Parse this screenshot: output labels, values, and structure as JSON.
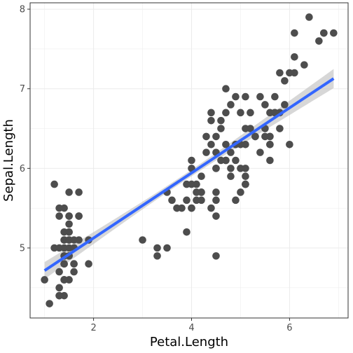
{
  "chart_data": {
    "type": "scatter",
    "title": "",
    "xlabel": "Petal.Length",
    "ylabel": "Sepal.Length",
    "xlim": [
      0.705,
      7.195
    ],
    "ylim": [
      4.12,
      8.08
    ],
    "x_ticks": [
      2,
      4,
      6
    ],
    "x_minor_ticks": [
      1,
      3,
      5,
      7
    ],
    "y_ticks": [
      5,
      6,
      7,
      8
    ],
    "y_minor_ticks": [
      4.5,
      5.5,
      6.5,
      7.5
    ],
    "grid": true,
    "legend": "none",
    "point_color": "#4d4d4d",
    "x": [
      1.4,
      1.4,
      1.3,
      1.5,
      1.4,
      1.7,
      1.4,
      1.5,
      1.4,
      1.5,
      1.5,
      1.6,
      1.4,
      1.1,
      1.2,
      1.5,
      1.3,
      1.4,
      1.7,
      1.5,
      1.7,
      1.5,
      1.0,
      1.7,
      1.9,
      1.6,
      1.6,
      1.5,
      1.4,
      1.6,
      1.6,
      1.5,
      1.5,
      1.4,
      1.5,
      1.2,
      1.3,
      1.4,
      1.3,
      1.5,
      1.3,
      1.3,
      1.3,
      1.6,
      1.9,
      1.4,
      1.6,
      1.4,
      1.5,
      1.4,
      4.7,
      4.5,
      4.9,
      4.0,
      4.6,
      4.5,
      4.7,
      3.3,
      4.6,
      3.9,
      3.5,
      4.2,
      4.0,
      4.7,
      3.6,
      4.4,
      4.5,
      4.1,
      4.5,
      3.9,
      4.8,
      4.0,
      4.9,
      4.7,
      4.3,
      4.4,
      4.8,
      5.0,
      4.5,
      3.5,
      3.8,
      3.7,
      3.9,
      5.1,
      4.5,
      4.5,
      4.7,
      4.4,
      4.1,
      4.0,
      4.4,
      4.6,
      4.0,
      3.3,
      4.2,
      4.2,
      4.2,
      4.3,
      3.0,
      4.1,
      6.0,
      5.1,
      5.9,
      5.6,
      5.8,
      6.6,
      4.5,
      6.3,
      5.8,
      6.1,
      5.1,
      5.3,
      5.5,
      5.0,
      5.1,
      5.3,
      5.5,
      6.7,
      6.9,
      5.0,
      5.7,
      4.9,
      6.7,
      4.9,
      5.7,
      6.0,
      4.8,
      4.9,
      5.6,
      5.8,
      6.1,
      6.4,
      5.6,
      5.1,
      5.6,
      6.1,
      5.6,
      5.5,
      4.8,
      5.4,
      5.6,
      5.1,
      5.1,
      5.9,
      5.7,
      5.2,
      5.0,
      5.2,
      5.4,
      5.1
    ],
    "y": [
      5.1,
      4.9,
      4.7,
      4.6,
      5.0,
      5.4,
      4.6,
      5.0,
      4.4,
      4.9,
      5.4,
      4.8,
      4.8,
      4.3,
      5.8,
      5.7,
      5.4,
      5.1,
      5.7,
      5.1,
      5.4,
      5.1,
      4.6,
      5.1,
      4.8,
      5.0,
      5.0,
      5.2,
      5.2,
      4.7,
      4.8,
      5.4,
      5.2,
      5.5,
      4.9,
      5.0,
      5.5,
      4.9,
      4.4,
      5.1,
      5.0,
      4.5,
      4.4,
      5.0,
      5.1,
      4.8,
      5.1,
      4.6,
      5.3,
      5.0,
      7.0,
      6.4,
      6.9,
      5.5,
      6.5,
      5.7,
      6.3,
      4.9,
      6.6,
      5.2,
      5.0,
      5.9,
      6.0,
      6.1,
      5.6,
      6.7,
      5.6,
      5.8,
      6.2,
      5.6,
      5.9,
      6.1,
      6.3,
      6.1,
      6.4,
      6.6,
      6.8,
      6.7,
      6.0,
      5.7,
      5.5,
      5.5,
      5.8,
      6.0,
      5.4,
      6.0,
      6.7,
      6.3,
      5.6,
      5.5,
      5.5,
      6.1,
      5.8,
      5.0,
      5.6,
      5.7,
      5.7,
      6.2,
      5.1,
      5.7,
      6.3,
      5.8,
      7.1,
      6.3,
      6.5,
      7.6,
      4.9,
      7.3,
      6.7,
      7.2,
      6.5,
      6.4,
      6.8,
      5.7,
      5.8,
      6.4,
      6.5,
      7.7,
      7.7,
      6.0,
      6.9,
      5.6,
      7.7,
      6.3,
      6.7,
      7.2,
      6.2,
      6.1,
      6.4,
      7.2,
      7.4,
      7.9,
      6.4,
      6.3,
      6.1,
      7.7,
      6.3,
      6.4,
      6.0,
      6.9,
      6.7,
      6.9,
      5.8,
      6.8,
      6.7,
      6.7,
      6.3,
      6.5,
      6.2,
      5.9
    ],
    "fit": {
      "method": "lm",
      "color": "#3366ff",
      "band_color": "#bdbdbd",
      "intercept": 4.3066,
      "slope": 0.40892,
      "x_range": [
        1.0,
        6.9
      ],
      "band_halfwidth_ends": 0.12,
      "band_halfwidth_center": 0.04,
      "x_center": 3.758
    }
  }
}
